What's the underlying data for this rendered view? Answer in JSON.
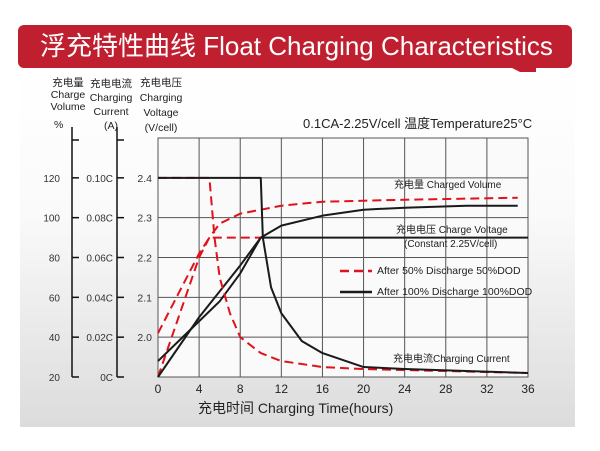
{
  "title": "浮充特性曲线 Float Charging Characteristics",
  "condition": "0.1CA-2.25V/cell   温度Temperature25°C",
  "axis_headers": {
    "volume": [
      "充电量",
      "Charge",
      "Volume"
    ],
    "current": [
      "充电电流",
      "Charging",
      "Current"
    ],
    "voltage": [
      "充电电压",
      "Charging",
      "Voltage"
    ]
  },
  "units": {
    "volume": "%",
    "current": "(A)",
    "voltage": "(V/cell)"
  },
  "colors": {
    "banner": "#c01f2f",
    "dod50": "#e0121c",
    "dod100": "#1a1a1a"
  },
  "chart_data": {
    "type": "line",
    "title": "浮充特性曲线 Float Charging Characteristics",
    "xlabel": "充电时间 Charging Time(hours)",
    "xlim": [
      0,
      36
    ],
    "xticks": [
      "0",
      "4",
      "8",
      "12",
      "16",
      "20",
      "24",
      "28",
      "32",
      "36"
    ],
    "grid": true,
    "legend_placement": "right-middle",
    "y_axes": {
      "voltage": {
        "label": "充电电压 Charging Voltage (V/cell)",
        "lim": [
          1.9,
          2.5
        ],
        "ticks": [
          "2.0",
          "2.1",
          "2.2",
          "2.3",
          "2.4"
        ]
      },
      "volume": {
        "label": "充电量 Charge Volume %",
        "lim": [
          20,
          140
        ],
        "ticks": [
          "20",
          "40",
          "60",
          "80",
          "100",
          "120"
        ]
      },
      "current": {
        "label": "充电电流 Charging Current (A)",
        "lim": [
          0,
          0.12
        ],
        "ticks": [
          "0C",
          "0.02C",
          "0.04C",
          "0.06C",
          "0.08C",
          "0.10C"
        ]
      }
    },
    "legend": [
      "After 50% Discharge 50%DOD",
      "After 100%  Discharge 100%DOD"
    ],
    "annotations": [
      "充电量 Charged Volume",
      "充电电压 Charge Voltage",
      "(Constant 2.25V/cell)",
      "充电电流Charging Current"
    ],
    "series": [
      {
        "group": "After 50% Discharge 50%DOD",
        "quantity": "volume",
        "axis": "volume",
        "style": "dashed",
        "x": [
          0,
          1,
          2,
          3,
          4,
          5,
          6,
          8,
          12,
          16,
          24,
          35
        ],
        "y": [
          20,
          35,
          50,
          65,
          80,
          90,
          97,
          102,
          106,
          108,
          109,
          110
        ]
      },
      {
        "group": "After 100%  Discharge 100%DOD",
        "quantity": "volume",
        "axis": "volume",
        "style": "solid",
        "x": [
          0,
          2,
          4,
          6,
          8,
          10,
          12,
          16,
          20,
          24,
          30,
          35
        ],
        "y": [
          20,
          35,
          50,
          63,
          76,
          90,
          96,
          101,
          104,
          105,
          106,
          106
        ]
      },
      {
        "group": "After 50% Discharge 50%DOD",
        "quantity": "voltage",
        "axis": "voltage",
        "style": "dashed",
        "x": [
          0,
          1,
          2,
          3,
          4,
          5,
          10
        ],
        "y": [
          2.01,
          2.06,
          2.11,
          2.16,
          2.21,
          2.25,
          2.25
        ]
      },
      {
        "group": "After 100%  Discharge 100%DOD",
        "quantity": "voltage",
        "axis": "voltage",
        "style": "solid",
        "x": [
          0,
          2,
          4,
          6,
          8,
          10,
          36
        ],
        "y": [
          1.94,
          1.99,
          2.04,
          2.09,
          2.16,
          2.25,
          2.25
        ]
      },
      {
        "group": "After 50% Discharge 50%DOD",
        "quantity": "current",
        "axis": "current",
        "style": "dashed",
        "x": [
          0,
          5,
          5.5,
          6,
          7,
          8,
          10,
          12,
          16,
          20,
          36
        ],
        "y": [
          0.1,
          0.1,
          0.07,
          0.05,
          0.032,
          0.02,
          0.012,
          0.008,
          0.005,
          0.004,
          0.002
        ]
      },
      {
        "group": "After 100%  Discharge 100%DOD",
        "quantity": "current",
        "axis": "current",
        "style": "solid",
        "x": [
          0,
          10,
          10.2,
          11,
          12,
          14,
          16,
          20,
          24,
          36
        ],
        "y": [
          0.1,
          0.1,
          0.07,
          0.045,
          0.032,
          0.018,
          0.012,
          0.005,
          0.004,
          0.002
        ]
      }
    ]
  }
}
